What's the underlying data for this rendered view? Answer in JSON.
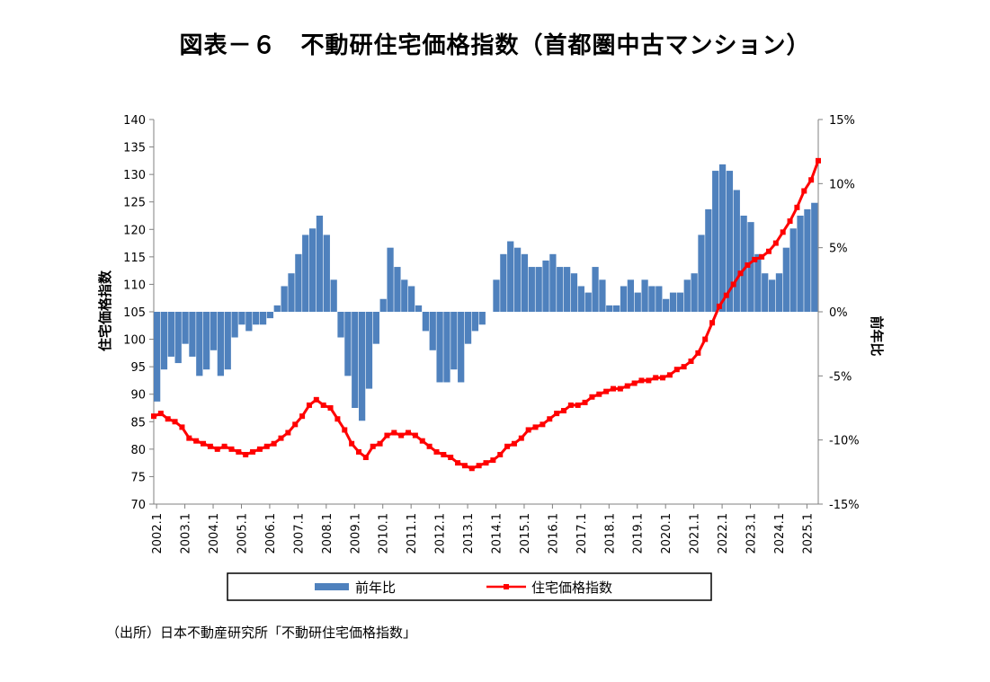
{
  "title": "図表－６　不動研住宅価格指数（首都圏中古マンション）",
  "source": "（出所）日本不動産研究所「不動研住宅価格指数」",
  "colors": {
    "bars": "#4F81BD",
    "line": "#FF0000",
    "axis": "#808080",
    "frame": "#000000"
  },
  "chart_data": {
    "type": "bar+line",
    "y_left": {
      "label": "住宅価格指数",
      "min": 70,
      "max": 140,
      "step": 5,
      "ticks": [
        "70",
        "75",
        "80",
        "85",
        "90",
        "95",
        "100",
        "105",
        "110",
        "115",
        "120",
        "125",
        "130",
        "135",
        "140"
      ]
    },
    "y_right": {
      "label": "前年比",
      "min": -15,
      "max": 15,
      "step": 5,
      "ticks": [
        "-15%",
        "-10%",
        "-5%",
        "0%",
        "5%",
        "10%",
        "15%"
      ]
    },
    "x_range": [
      2002.0,
      2025.5
    ],
    "x_ticks": [
      "2002.1",
      "2003.1",
      "2004.1",
      "2005.1",
      "2006.1",
      "2007.1",
      "2008.1",
      "2009.1",
      "2010.1",
      "2011.1",
      "2012.1",
      "2013.1",
      "2014.1",
      "2015.1",
      "2016.1",
      "2017.1",
      "2018.1",
      "2019.1",
      "2020.1",
      "2021.1",
      "2022.1",
      "2023.1",
      "2024.1",
      "2025.1"
    ],
    "legend": {
      "position": "bottom",
      "entries": [
        "前年比",
        "住宅価格指数"
      ]
    },
    "series": [
      {
        "name": "前年比",
        "type": "bar",
        "axis": "right",
        "unit": "%",
        "points": [
          [
            2002.0,
            -7.0
          ],
          [
            2002.25,
            -4.5
          ],
          [
            2002.5,
            -3.5
          ],
          [
            2002.75,
            -4.0
          ],
          [
            2003.0,
            -2.5
          ],
          [
            2003.25,
            -3.5
          ],
          [
            2003.5,
            -5.0
          ],
          [
            2003.75,
            -4.5
          ],
          [
            2004.0,
            -3.0
          ],
          [
            2004.25,
            -5.0
          ],
          [
            2004.5,
            -4.5
          ],
          [
            2004.75,
            -2.0
          ],
          [
            2005.0,
            -1.0
          ],
          [
            2005.25,
            -1.5
          ],
          [
            2005.5,
            -1.0
          ],
          [
            2005.75,
            -1.0
          ],
          [
            2006.0,
            -0.5
          ],
          [
            2006.25,
            0.5
          ],
          [
            2006.5,
            2.0
          ],
          [
            2006.75,
            3.0
          ],
          [
            2007.0,
            4.5
          ],
          [
            2007.25,
            6.0
          ],
          [
            2007.5,
            6.5
          ],
          [
            2007.75,
            7.5
          ],
          [
            2008.0,
            6.0
          ],
          [
            2008.25,
            2.5
          ],
          [
            2008.5,
            -2.0
          ],
          [
            2008.75,
            -5.0
          ],
          [
            2009.0,
            -7.5
          ],
          [
            2009.25,
            -8.5
          ],
          [
            2009.5,
            -6.0
          ],
          [
            2009.75,
            -2.5
          ],
          [
            2010.0,
            1.0
          ],
          [
            2010.25,
            5.0
          ],
          [
            2010.5,
            3.5
          ],
          [
            2010.75,
            2.5
          ],
          [
            2011.0,
            2.0
          ],
          [
            2011.25,
            0.5
          ],
          [
            2011.5,
            -1.5
          ],
          [
            2011.75,
            -3.0
          ],
          [
            2012.0,
            -5.5
          ],
          [
            2012.25,
            -5.5
          ],
          [
            2012.5,
            -4.5
          ],
          [
            2012.75,
            -5.5
          ],
          [
            2013.0,
            -2.5
          ],
          [
            2013.25,
            -1.5
          ],
          [
            2013.5,
            -1.0
          ],
          [
            2013.75,
            0.0
          ],
          [
            2014.0,
            2.5
          ],
          [
            2014.25,
            4.5
          ],
          [
            2014.5,
            5.5
          ],
          [
            2014.75,
            5.0
          ],
          [
            2015.0,
            4.5
          ],
          [
            2015.25,
            3.5
          ],
          [
            2015.5,
            3.5
          ],
          [
            2015.75,
            4.0
          ],
          [
            2016.0,
            4.5
          ],
          [
            2016.25,
            3.5
          ],
          [
            2016.5,
            3.5
          ],
          [
            2016.75,
            3.0
          ],
          [
            2017.0,
            2.0
          ],
          [
            2017.25,
            1.5
          ],
          [
            2017.5,
            3.5
          ],
          [
            2017.75,
            2.5
          ],
          [
            2018.0,
            0.5
          ],
          [
            2018.25,
            0.5
          ],
          [
            2018.5,
            2.0
          ],
          [
            2018.75,
            2.5
          ],
          [
            2019.0,
            1.5
          ],
          [
            2019.25,
            2.5
          ],
          [
            2019.5,
            2.0
          ],
          [
            2019.75,
            2.0
          ],
          [
            2020.0,
            1.0
          ],
          [
            2020.25,
            1.5
          ],
          [
            2020.5,
            1.5
          ],
          [
            2020.75,
            2.5
          ],
          [
            2021.0,
            3.0
          ],
          [
            2021.25,
            6.0
          ],
          [
            2021.5,
            8.0
          ],
          [
            2021.75,
            11.0
          ],
          [
            2022.0,
            11.5
          ],
          [
            2022.25,
            11.0
          ],
          [
            2022.5,
            9.5
          ],
          [
            2022.75,
            7.5
          ],
          [
            2023.0,
            7.0
          ],
          [
            2023.25,
            4.5
          ],
          [
            2023.5,
            3.0
          ],
          [
            2023.75,
            2.5
          ],
          [
            2024.0,
            3.0
          ],
          [
            2024.25,
            5.0
          ],
          [
            2024.5,
            6.5
          ],
          [
            2024.75,
            7.5
          ],
          [
            2025.0,
            8.0
          ],
          [
            2025.25,
            8.5
          ]
        ]
      },
      {
        "name": "住宅価格指数",
        "type": "line",
        "axis": "left",
        "points": [
          [
            2002.0,
            86.0
          ],
          [
            2002.25,
            86.5
          ],
          [
            2002.5,
            85.5
          ],
          [
            2002.75,
            85.0
          ],
          [
            2003.0,
            84.0
          ],
          [
            2003.25,
            82.0
          ],
          [
            2003.5,
            81.5
          ],
          [
            2003.75,
            81.0
          ],
          [
            2004.0,
            80.5
          ],
          [
            2004.25,
            80.0
          ],
          [
            2004.5,
            80.5
          ],
          [
            2004.75,
            80.0
          ],
          [
            2005.0,
            79.5
          ],
          [
            2005.25,
            79.0
          ],
          [
            2005.5,
            79.5
          ],
          [
            2005.75,
            80.0
          ],
          [
            2006.0,
            80.5
          ],
          [
            2006.25,
            81.0
          ],
          [
            2006.5,
            82.0
          ],
          [
            2006.75,
            83.0
          ],
          [
            2007.0,
            84.5
          ],
          [
            2007.25,
            86.0
          ],
          [
            2007.5,
            88.0
          ],
          [
            2007.75,
            89.0
          ],
          [
            2008.0,
            88.0
          ],
          [
            2008.25,
            87.5
          ],
          [
            2008.5,
            85.5
          ],
          [
            2008.75,
            83.5
          ],
          [
            2009.0,
            81.0
          ],
          [
            2009.25,
            79.5
          ],
          [
            2009.5,
            78.5
          ],
          [
            2009.75,
            80.5
          ],
          [
            2010.0,
            81.0
          ],
          [
            2010.25,
            82.5
          ],
          [
            2010.5,
            83.0
          ],
          [
            2010.75,
            82.5
          ],
          [
            2011.0,
            83.0
          ],
          [
            2011.25,
            82.5
          ],
          [
            2011.5,
            81.5
          ],
          [
            2011.75,
            80.5
          ],
          [
            2012.0,
            79.5
          ],
          [
            2012.25,
            79.0
          ],
          [
            2012.5,
            78.5
          ],
          [
            2012.75,
            77.5
          ],
          [
            2013.0,
            77.0
          ],
          [
            2013.25,
            76.5
          ],
          [
            2013.5,
            77.0
          ],
          [
            2013.75,
            77.5
          ],
          [
            2014.0,
            78.0
          ],
          [
            2014.25,
            79.0
          ],
          [
            2014.5,
            80.5
          ],
          [
            2014.75,
            81.0
          ],
          [
            2015.0,
            82.0
          ],
          [
            2015.25,
            83.5
          ],
          [
            2015.5,
            84.0
          ],
          [
            2015.75,
            84.5
          ],
          [
            2016.0,
            85.5
          ],
          [
            2016.25,
            86.5
          ],
          [
            2016.5,
            87.0
          ],
          [
            2016.75,
            88.0
          ],
          [
            2017.0,
            88.0
          ],
          [
            2017.25,
            88.5
          ],
          [
            2017.5,
            89.5
          ],
          [
            2017.75,
            90.0
          ],
          [
            2018.0,
            90.5
          ],
          [
            2018.25,
            91.0
          ],
          [
            2018.5,
            91.0
          ],
          [
            2018.75,
            91.5
          ],
          [
            2019.0,
            92.0
          ],
          [
            2019.25,
            92.5
          ],
          [
            2019.5,
            92.5
          ],
          [
            2019.75,
            93.0
          ],
          [
            2020.0,
            93.0
          ],
          [
            2020.25,
            93.5
          ],
          [
            2020.5,
            94.5
          ],
          [
            2020.75,
            95.0
          ],
          [
            2021.0,
            96.0
          ],
          [
            2021.25,
            97.5
          ],
          [
            2021.5,
            100.0
          ],
          [
            2021.75,
            103.0
          ],
          [
            2022.0,
            106.0
          ],
          [
            2022.25,
            108.0
          ],
          [
            2022.5,
            110.0
          ],
          [
            2022.75,
            112.0
          ],
          [
            2023.0,
            113.5
          ],
          [
            2023.25,
            114.5
          ],
          [
            2023.5,
            115.0
          ],
          [
            2023.75,
            116.0
          ],
          [
            2024.0,
            117.5
          ],
          [
            2024.25,
            119.5
          ],
          [
            2024.5,
            121.5
          ],
          [
            2024.75,
            124.0
          ],
          [
            2025.0,
            127.0
          ],
          [
            2025.25,
            129.0
          ],
          [
            2025.5,
            132.5
          ]
        ]
      }
    ]
  }
}
